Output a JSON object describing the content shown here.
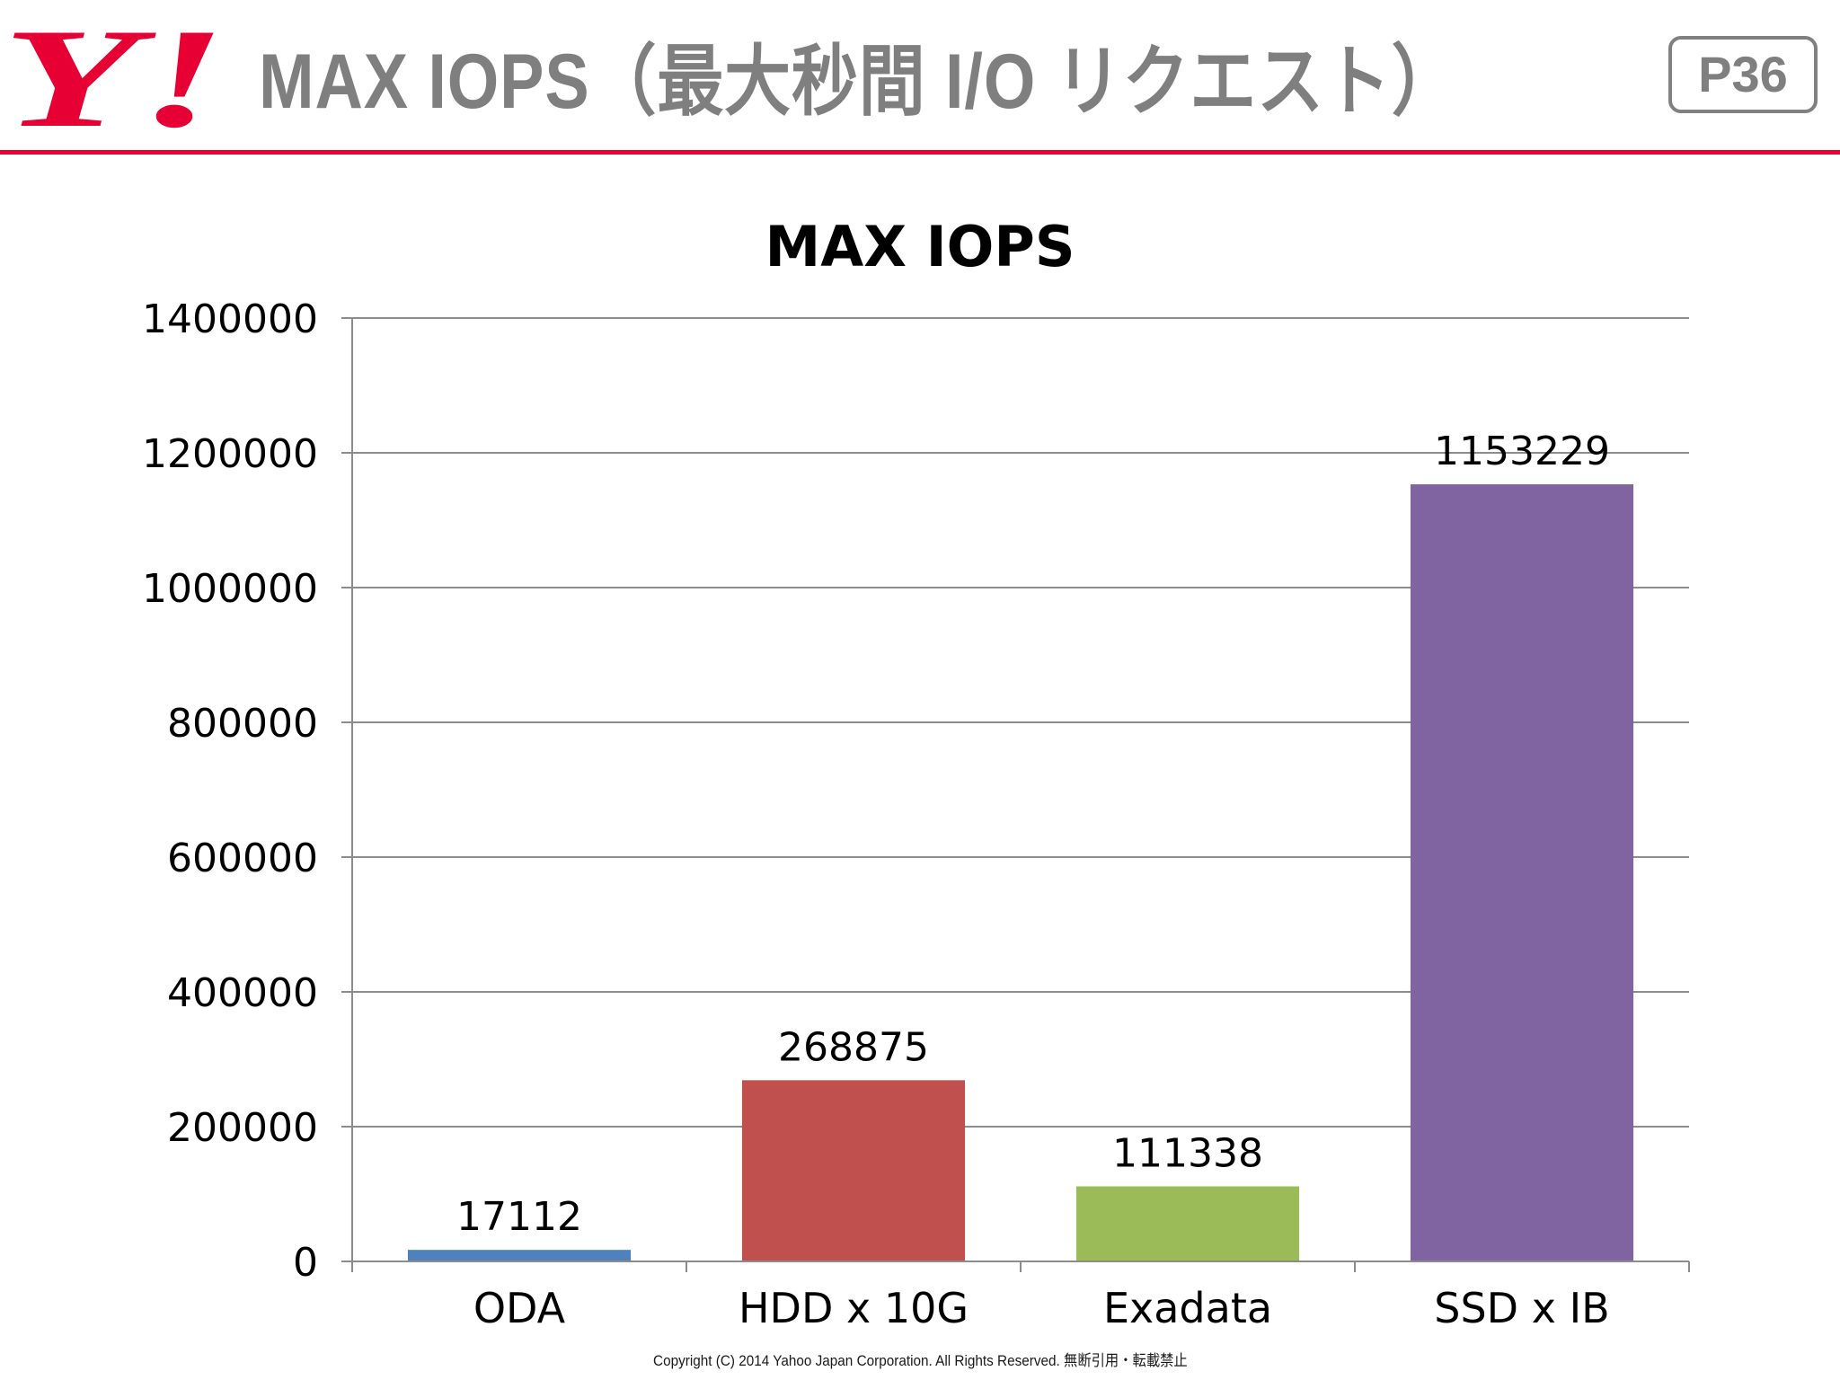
{
  "header": {
    "logo_text": "Y!",
    "title": "MAX IOPS（最大秒間 I/O リクエスト）",
    "page_badge": "P36"
  },
  "colors": {
    "brand_red": "#e60033",
    "header_gray": "#7f7f7f"
  },
  "chart_data": {
    "type": "bar",
    "title": "MAX IOPS",
    "categories": [
      "ODA",
      "HDD x 10G",
      "Exadata",
      "SSD x IB"
    ],
    "values": [
      17112,
      268875,
      111338,
      1153229
    ],
    "data_labels": [
      "17112",
      "268875",
      "111338",
      "1153229"
    ],
    "colors": [
      "#4f81bd",
      "#c0504d",
      "#9bbb59",
      "#8064a2"
    ],
    "ylim": [
      0,
      1400000
    ],
    "yticks": [
      0,
      200000,
      400000,
      600000,
      800000,
      1000000,
      1200000,
      1400000
    ],
    "ytick_labels": [
      "0",
      "200000",
      "400000",
      "600000",
      "800000",
      "1000000",
      "1200000",
      "1400000"
    ],
    "xlabel": "",
    "ylabel": "",
    "grid": true,
    "legend": "none"
  },
  "footer": {
    "copyright": "Copyright (C) 2014 Yahoo Japan Corporation. All Rights Reserved. 無断引用・転載禁止"
  }
}
